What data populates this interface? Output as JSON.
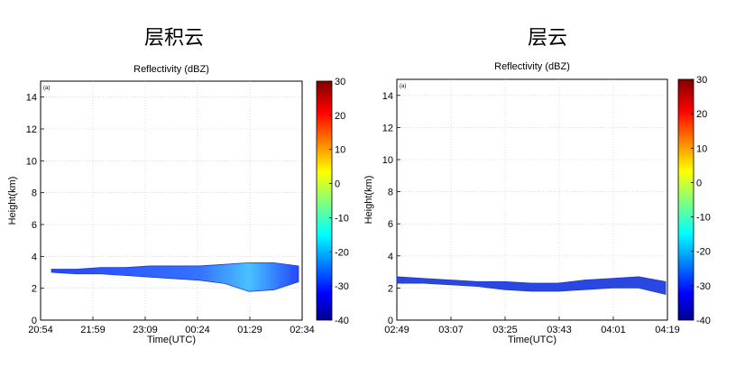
{
  "headings": {
    "left": "层积云",
    "right": "层云"
  },
  "chart_data": [
    {
      "type": "heatmap",
      "title": "Reflectivity (dBZ)",
      "panel_label": "(a)",
      "xlabel": "Time(UTC)",
      "ylabel": "Height(km)",
      "x_ticks": [
        "20:54",
        "21:59",
        "23:09",
        "00:24",
        "01:29",
        "02:34"
      ],
      "y_ticks": [
        0,
        2,
        4,
        6,
        8,
        10,
        12,
        14
      ],
      "ylim": [
        0,
        15
      ],
      "grid": true,
      "colorbar": {
        "range": [
          -40,
          30
        ],
        "ticks": [
          30,
          20,
          10,
          0,
          -10,
          -20,
          -30,
          -40
        ]
      },
      "cloud_layer": {
        "x_start": "20:54",
        "x_end": "02:34",
        "echo_top_km": [
          3.2,
          3.2,
          3.3,
          3.3,
          3.4,
          3.4,
          3.4,
          3.5,
          3.6,
          3.6,
          3.4
        ],
        "echo_base_km": [
          3.0,
          2.9,
          2.9,
          2.8,
          2.7,
          2.6,
          2.5,
          2.3,
          1.8,
          1.9,
          2.4
        ],
        "reflectivity_dbz_range": [
          -40,
          -20
        ]
      }
    },
    {
      "type": "heatmap",
      "title": "Reflectivity (dBZ)",
      "panel_label": "(a)",
      "xlabel": "Time(UTC)",
      "ylabel": "Height(km)",
      "x_ticks": [
        "02:49",
        "03:07",
        "03:25",
        "03:43",
        "04:01",
        "04:19"
      ],
      "y_ticks": [
        0,
        2,
        4,
        6,
        8,
        10,
        12,
        14
      ],
      "ylim": [
        0,
        15
      ],
      "grid": true,
      "colorbar": {
        "range": [
          -40,
          30
        ],
        "ticks": [
          30,
          20,
          10,
          0,
          -10,
          -20,
          -30,
          -40
        ]
      },
      "cloud_layer": {
        "x_start": "02:49",
        "x_end": "04:19",
        "echo_top_km": [
          2.7,
          2.6,
          2.5,
          2.4,
          2.4,
          2.3,
          2.3,
          2.5,
          2.6,
          2.7,
          2.4
        ],
        "echo_base_km": [
          2.3,
          2.3,
          2.2,
          2.1,
          1.9,
          1.8,
          1.8,
          1.9,
          2.0,
          2.0,
          1.6
        ],
        "reflectivity_dbz_range": [
          -40,
          -25
        ]
      }
    }
  ]
}
